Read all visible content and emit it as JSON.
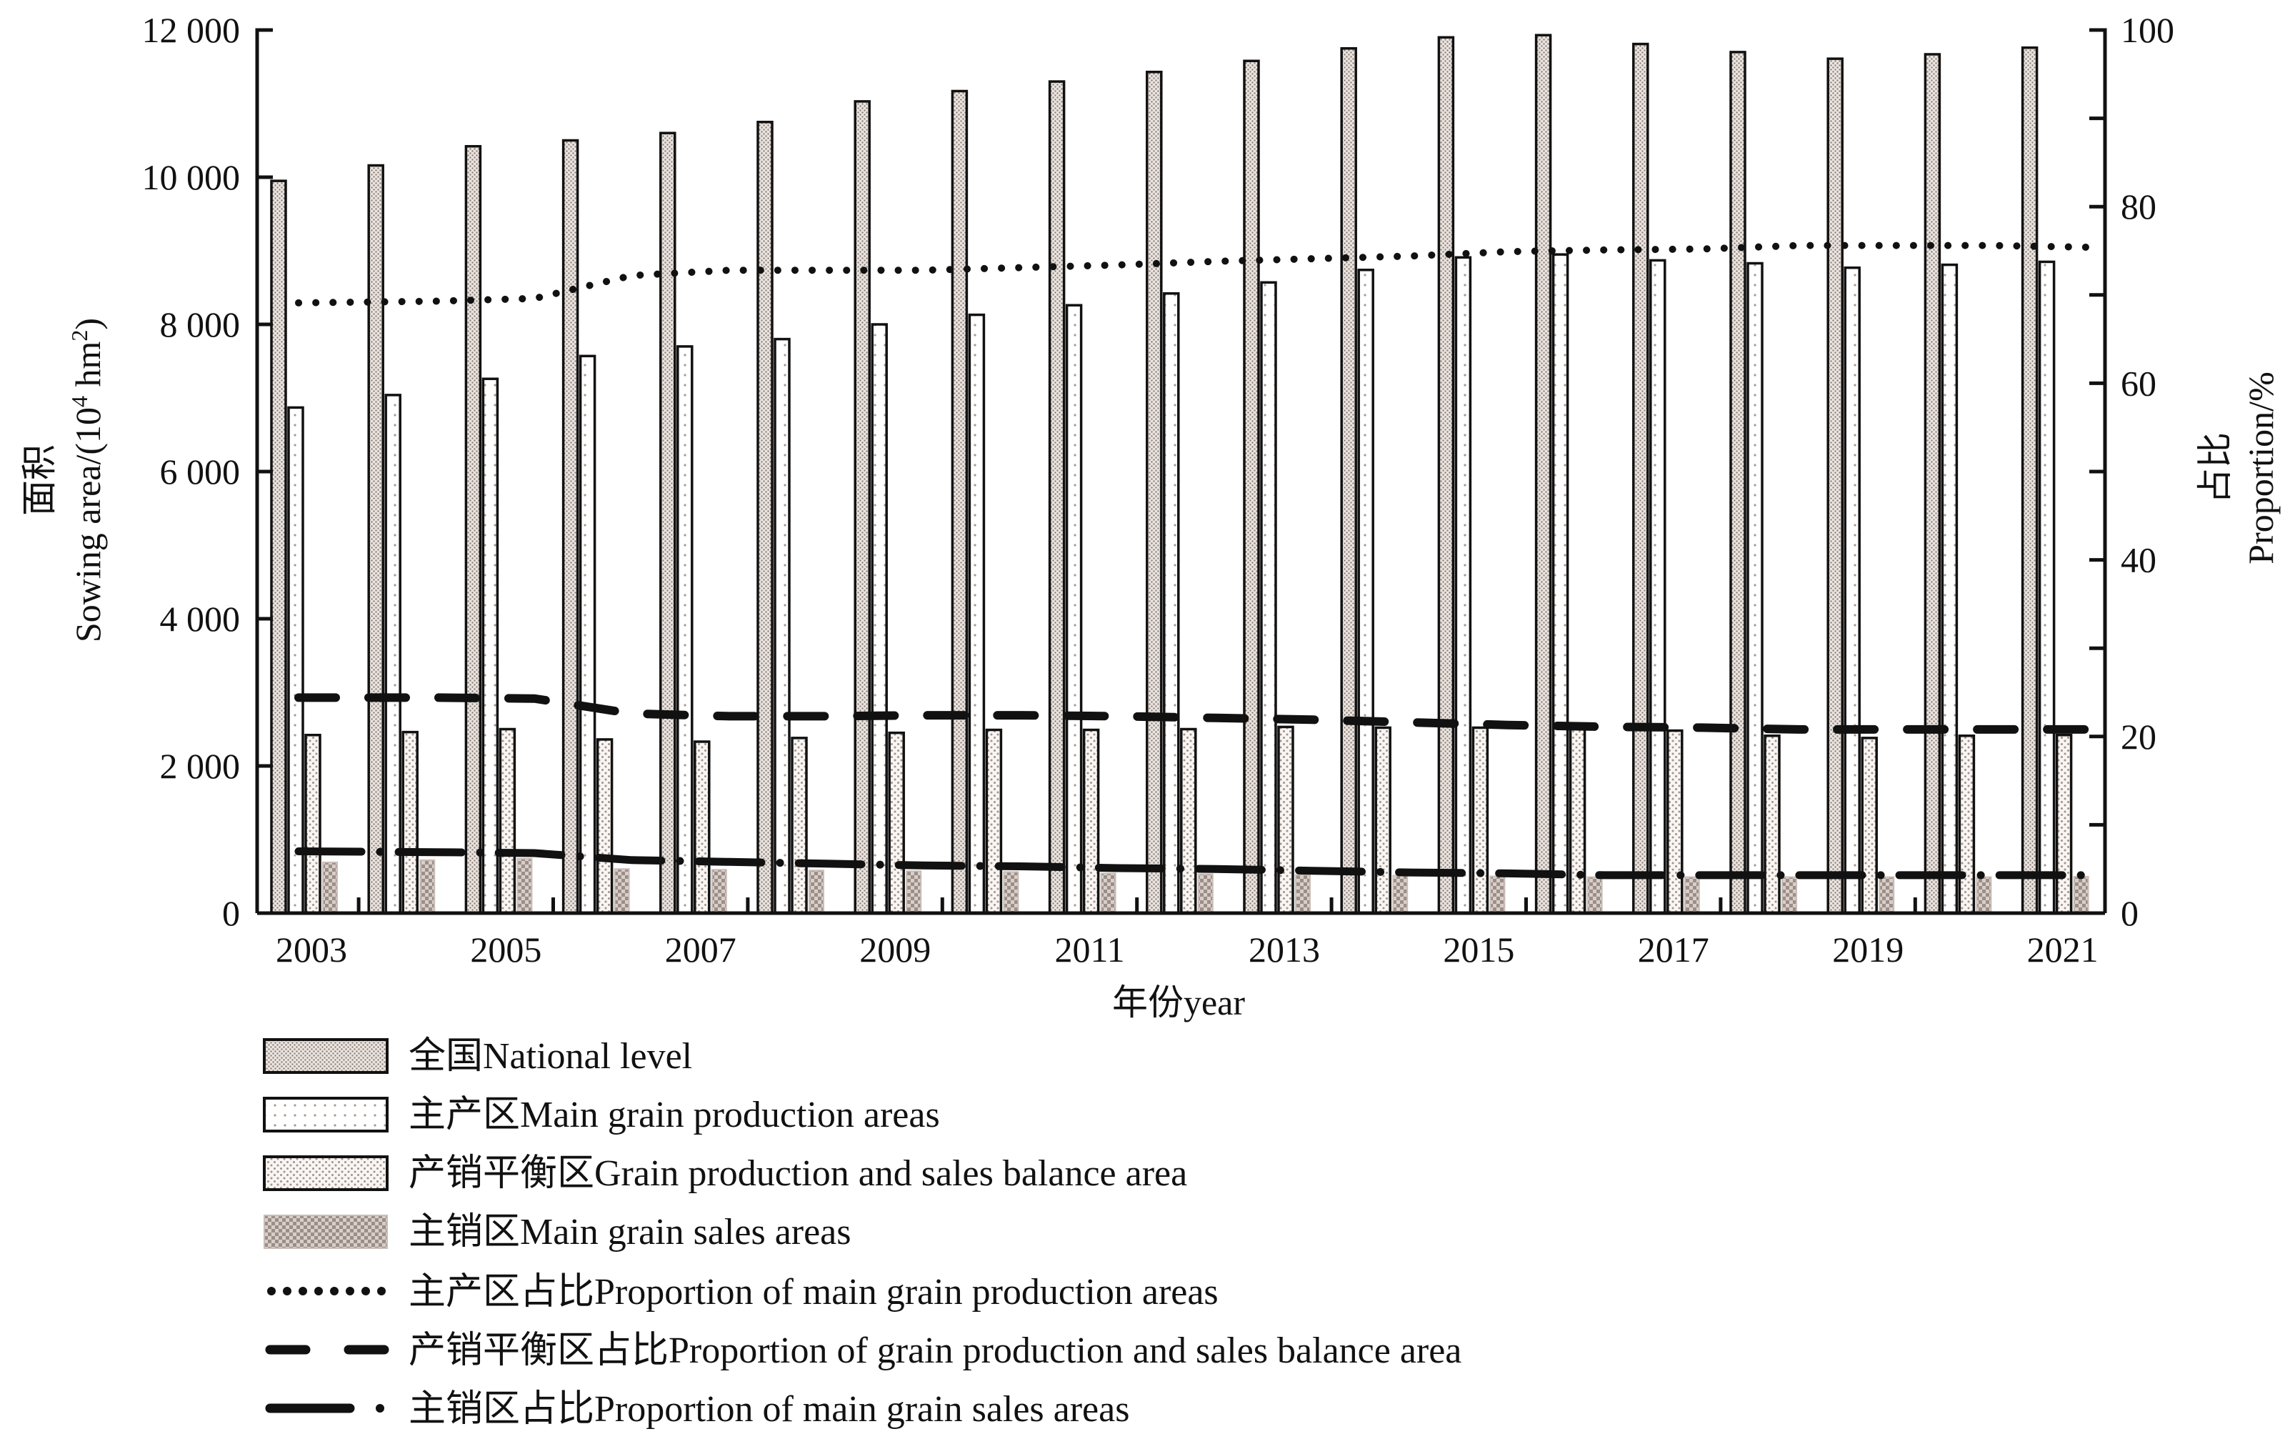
{
  "chart_data": {
    "type": "bar",
    "title": "",
    "xlabel": "年份year",
    "ylabel_cn": "面积",
    "ylabel_en": "Sowing area/(10",
    "ylabel_sup": "4",
    "ylabel_en_tail": " hm",
    "ylabel_sup2": "2",
    "ylabel_close": ")",
    "y2label_cn": "占比",
    "y2label_en": "Proportion/%",
    "ylim": [
      0,
      12000
    ],
    "y2lim": [
      0,
      100
    ],
    "yticks": [
      0,
      2000,
      4000,
      6000,
      8000,
      10000,
      12000
    ],
    "ytick_labels": [
      "0",
      "2 000",
      "4 000",
      "6 000",
      "8 000",
      "10 000",
      "12 000"
    ],
    "y2ticks": [
      0,
      20,
      40,
      60,
      80,
      100
    ],
    "y2ticks_minor": [
      10,
      30,
      50,
      70,
      90
    ],
    "y2tick_labels": [
      "0",
      "20",
      "40",
      "60",
      "80",
      "100"
    ],
    "grid": false,
    "legend_position": "bottom-left",
    "categories": [
      "2003",
      "2004",
      "2005",
      "2006",
      "2007",
      "2008",
      "2009",
      "2010",
      "2011",
      "2012",
      "2013",
      "2014",
      "2015",
      "2016",
      "2017",
      "2018",
      "2019",
      "2020",
      "2021"
    ],
    "xtick_labels": [
      "2003",
      "2005",
      "2007",
      "2009",
      "2011",
      "2013",
      "2015",
      "2017",
      "2019",
      "2021"
    ],
    "bar_series": [
      {
        "name": "全国National level",
        "pattern": "national",
        "values": [
          9950,
          10160,
          10420,
          10500,
          10600,
          10750,
          11030,
          11170,
          11300,
          11430,
          11580,
          11750,
          11900,
          11930,
          11810,
          11700,
          11610,
          11670,
          11760
        ]
      },
      {
        "name": "主产区Main grain production areas",
        "pattern": "mainprod",
        "values": [
          6870,
          7040,
          7260,
          7570,
          7700,
          7800,
          8000,
          8130,
          8260,
          8420,
          8570,
          8740,
          8910,
          8950,
          8870,
          8830,
          8770,
          8810,
          8850
        ]
      },
      {
        "name": "产销平衡区Grain production and sales balance area",
        "pattern": "balance",
        "values": [
          2420,
          2460,
          2500,
          2360,
          2330,
          2380,
          2450,
          2490,
          2490,
          2500,
          2530,
          2520,
          2520,
          2510,
          2480,
          2410,
          2380,
          2410,
          2420
        ]
      },
      {
        "name": "主销区Main grain sales areas",
        "pattern": "sales",
        "values": [
          690,
          720,
          740,
          600,
          590,
          580,
          570,
          560,
          540,
          530,
          520,
          510,
          500,
          490,
          490,
          490,
          490,
          490,
          495
        ]
      }
    ],
    "line_series": [
      {
        "name": "主产区占比Proportion of main grain production areas",
        "style": "dotted",
        "axis": "right",
        "values": [
          69.1,
          69.3,
          69.6,
          72.2,
          72.8,
          72.8,
          72.8,
          73.1,
          73.4,
          73.8,
          74.1,
          74.4,
          74.9,
          75.1,
          75.2,
          75.6,
          75.6,
          75.6,
          75.4
        ]
      },
      {
        "name": "产销平衡区占比Proportion of grain production and sales balance area",
        "style": "dashed",
        "axis": "right",
        "values": [
          24.4,
          24.4,
          24.3,
          22.6,
          22.3,
          22.3,
          22.4,
          22.4,
          22.3,
          22.1,
          21.9,
          21.6,
          21.3,
          21.1,
          21.0,
          20.8,
          20.8,
          20.8,
          20.8
        ]
      },
      {
        "name": "主销区占比Proportion of main grain sales areas",
        "style": "dash-dot",
        "axis": "right",
        "values": [
          7.0,
          6.9,
          6.8,
          6.0,
          5.8,
          5.6,
          5.4,
          5.3,
          5.1,
          5.0,
          4.8,
          4.6,
          4.5,
          4.3,
          4.3,
          4.3,
          4.3,
          4.3,
          4.3
        ]
      }
    ]
  }
}
